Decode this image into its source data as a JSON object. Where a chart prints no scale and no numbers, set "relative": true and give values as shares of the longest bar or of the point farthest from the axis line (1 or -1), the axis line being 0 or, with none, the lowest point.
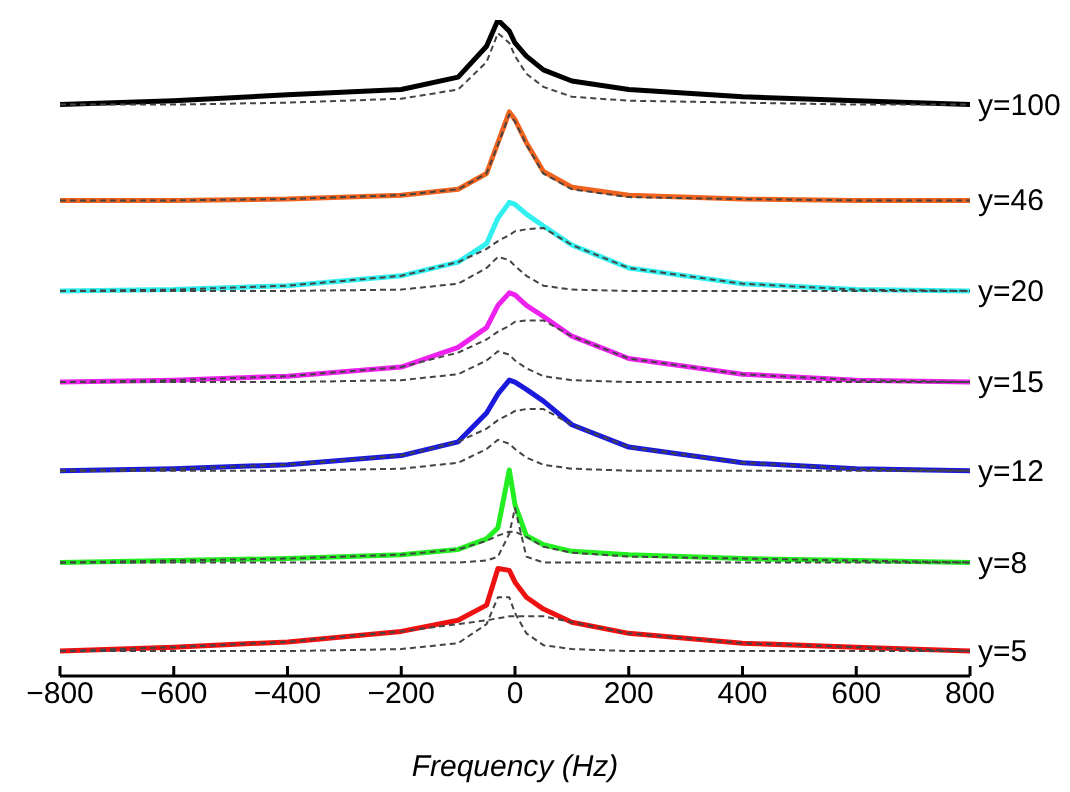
{
  "chart_data": {
    "type": "line",
    "xlabel": "Frequency (Hz)",
    "relative": true,
    "xlim": [
      -800,
      800
    ],
    "xticks": [
      -800,
      -600,
      -400,
      -200,
      0,
      200,
      400,
      600,
      800
    ],
    "tick_labels": "x",
    "grid": false,
    "legend": false,
    "marker": "none",
    "x": [
      -800,
      -600,
      -400,
      -200,
      -100,
      -50,
      -30,
      -10,
      0,
      20,
      50,
      100,
      200,
      400,
      600,
      800
    ],
    "series": [
      {
        "name": "y=100",
        "color": "#000000",
        "line_style": "solid",
        "values": [
          0.871,
          0.877,
          0.886,
          0.894,
          0.913,
          0.96,
          1.0,
          0.983,
          0.965,
          0.945,
          0.924,
          0.907,
          0.894,
          0.883,
          0.877,
          0.871
        ]
      },
      {
        "color": "#444444",
        "line_style": "dashed",
        "values": [
          0.871,
          0.871,
          0.874,
          0.88,
          0.894,
          0.936,
          0.98,
          0.965,
          0.945,
          0.918,
          0.898,
          0.883,
          0.877,
          0.874,
          0.871,
          0.871
        ]
      },
      {
        "name": "y=46",
        "color": "#f0631e",
        "line_style": "solid",
        "values": [
          0.725,
          0.725,
          0.727,
          0.733,
          0.742,
          0.766,
          0.813,
          0.86,
          0.848,
          0.813,
          0.769,
          0.745,
          0.733,
          0.727,
          0.725,
          0.725
        ]
      },
      {
        "color": "#444444",
        "line_style": "dashed",
        "values": [
          0.725,
          0.725,
          0.727,
          0.733,
          0.742,
          0.766,
          0.81,
          0.856,
          0.845,
          0.81,
          0.766,
          0.742,
          0.73,
          0.727,
          0.725,
          0.725
        ]
      },
      {
        "name": "y=20",
        "color": "#33f0f0",
        "line_style": "solid",
        "values": [
          0.587,
          0.589,
          0.595,
          0.61,
          0.631,
          0.659,
          0.698,
          0.722,
          0.719,
          0.704,
          0.686,
          0.657,
          0.622,
          0.598,
          0.589,
          0.587
        ]
      },
      {
        "color": "#444444",
        "line_style": "dashed",
        "values": [
          0.587,
          0.589,
          0.595,
          0.61,
          0.631,
          0.651,
          0.663,
          0.672,
          0.678,
          0.681,
          0.683,
          0.657,
          0.622,
          0.598,
          0.589,
          0.587
        ]
      },
      {
        "color": "#444444",
        "line_style": "dashed",
        "values": [
          0.587,
          0.587,
          0.587,
          0.589,
          0.598,
          0.622,
          0.639,
          0.634,
          0.625,
          0.61,
          0.595,
          0.589,
          0.587,
          0.587,
          0.587,
          0.587
        ]
      },
      {
        "name": "y=15",
        "color": "#ee22ee",
        "line_style": "solid",
        "values": [
          0.448,
          0.451,
          0.457,
          0.471,
          0.501,
          0.531,
          0.565,
          0.584,
          0.581,
          0.565,
          0.548,
          0.518,
          0.484,
          0.46,
          0.451,
          0.448
        ]
      },
      {
        "color": "#444444",
        "line_style": "dashed",
        "values": [
          0.448,
          0.451,
          0.457,
          0.471,
          0.493,
          0.513,
          0.525,
          0.534,
          0.54,
          0.542,
          0.542,
          0.518,
          0.484,
          0.46,
          0.451,
          0.448
        ]
      },
      {
        "color": "#444444",
        "line_style": "dashed",
        "values": [
          0.448,
          0.448,
          0.448,
          0.451,
          0.46,
          0.481,
          0.495,
          0.49,
          0.481,
          0.469,
          0.457,
          0.451,
          0.448,
          0.448,
          0.448,
          0.448
        ]
      },
      {
        "name": "y=12",
        "color": "#1a1add",
        "line_style": "solid",
        "values": [
          0.313,
          0.316,
          0.322,
          0.336,
          0.357,
          0.401,
          0.43,
          0.451,
          0.448,
          0.437,
          0.419,
          0.383,
          0.349,
          0.325,
          0.316,
          0.313
        ]
      },
      {
        "color": "#444444",
        "line_style": "dashed",
        "values": [
          0.313,
          0.316,
          0.322,
          0.336,
          0.357,
          0.377,
          0.39,
          0.399,
          0.404,
          0.407,
          0.407,
          0.383,
          0.349,
          0.325,
          0.316,
          0.313
        ]
      },
      {
        "color": "#444444",
        "line_style": "dashed",
        "values": [
          0.313,
          0.313,
          0.313,
          0.316,
          0.325,
          0.346,
          0.36,
          0.354,
          0.346,
          0.333,
          0.322,
          0.316,
          0.313,
          0.313,
          0.313,
          0.313
        ]
      },
      {
        "name": "y=8",
        "color": "#22ee22",
        "line_style": "solid",
        "values": [
          0.173,
          0.176,
          0.179,
          0.185,
          0.193,
          0.209,
          0.226,
          0.314,
          0.261,
          0.214,
          0.2,
          0.19,
          0.185,
          0.179,
          0.176,
          0.173
        ]
      },
      {
        "color": "#444444",
        "line_style": "dashed",
        "values": [
          0.173,
          0.176,
          0.179,
          0.185,
          0.193,
          0.206,
          0.214,
          0.22,
          0.22,
          0.212,
          0.197,
          0.188,
          0.182,
          0.179,
          0.176,
          0.173
        ]
      },
      {
        "color": "#444444",
        "line_style": "dashed",
        "values": [
          0.173,
          0.173,
          0.173,
          0.173,
          0.173,
          0.176,
          0.182,
          0.217,
          0.256,
          0.182,
          0.173,
          0.173,
          0.173,
          0.173,
          0.173,
          0.173
        ]
      },
      {
        "name": "y=5",
        "color": "#ee1111",
        "line_style": "solid",
        "values": [
          0.038,
          0.044,
          0.052,
          0.068,
          0.085,
          0.108,
          0.164,
          0.161,
          0.143,
          0.12,
          0.102,
          0.082,
          0.065,
          0.05,
          0.044,
          0.038
        ]
      },
      {
        "color": "#444444",
        "line_style": "dashed",
        "values": [
          0.038,
          0.044,
          0.052,
          0.068,
          0.079,
          0.085,
          0.088,
          0.091,
          0.091,
          0.091,
          0.091,
          0.082,
          0.065,
          0.05,
          0.044,
          0.038
        ]
      },
      {
        "color": "#444444",
        "line_style": "dashed",
        "values": [
          0.038,
          0.038,
          0.038,
          0.041,
          0.05,
          0.079,
          0.12,
          0.12,
          0.096,
          0.065,
          0.047,
          0.041,
          0.038,
          0.038,
          0.038,
          0.038
        ]
      }
    ]
  }
}
